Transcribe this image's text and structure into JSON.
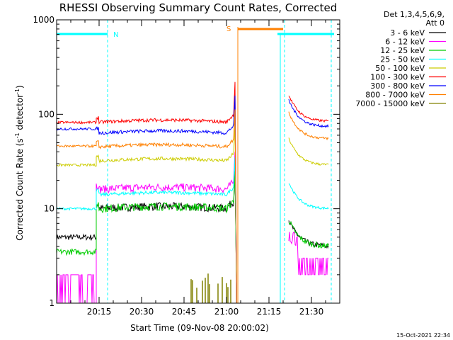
{
  "chart_data": {
    "type": "line",
    "title": "RHESSI Observing Summary Count Rates, Corrected",
    "xlabel": "Start Time (09-Nov-08 20:00:02)",
    "ylabel_parts": [
      "Corrected Count Rate (s",
      "-1",
      " detector",
      "-1",
      ")"
    ],
    "yscale": "log",
    "ylim": [
      1,
      1000
    ],
    "xlim_minutes": [
      0,
      100
    ],
    "y_ticks": [
      {
        "value": 1,
        "label": "1"
      },
      {
        "value": 10,
        "label": "10"
      },
      {
        "value": 100,
        "label": "100"
      },
      {
        "value": 1000,
        "label": "1000"
      }
    ],
    "x_ticks": [
      {
        "value": 15,
        "label": "20:15"
      },
      {
        "value": 30,
        "label": "20:30"
      },
      {
        "value": 45,
        "label": "20:45"
      },
      {
        "value": 60,
        "label": "21:00"
      },
      {
        "value": 75,
        "label": "21:15"
      },
      {
        "value": 90,
        "label": "21:30"
      }
    ],
    "legend_header": [
      "Det 1,3,4,5,6,9,",
      "Att 0"
    ],
    "series": [
      {
        "name": "3 - 6 keV",
        "color": "#000000",
        "level": 10,
        "pre": 5,
        "post": 4
      },
      {
        "name": "6 - 12 keV",
        "color": "#ff00ff",
        "level": 16,
        "pre": 2,
        "post": 2
      },
      {
        "name": "12 - 25 keV",
        "color": "#00cc00",
        "level": 10,
        "pre": 3.5,
        "post": 4
      },
      {
        "name": "25 - 50 keV",
        "color": "#00ffff",
        "level": 14,
        "pre": 10,
        "post": 10
      },
      {
        "name": "50 - 100 keV",
        "color": "#cccc00",
        "level": 32,
        "pre": 29,
        "post": 29
      },
      {
        "name": "100 - 300 keV",
        "color": "#ff0000",
        "level": 82,
        "pre": 82,
        "post": 84
      },
      {
        "name": "300 - 800 keV",
        "color": "#0000ff",
        "level": 63,
        "pre": 70,
        "post": 74
      },
      {
        "name": "800 - 7000 keV",
        "color": "#ff8000",
        "level": 45,
        "pre": 46,
        "post": 55
      },
      {
        "name": "7000 - 15000 keV",
        "color": "#808000",
        "level": 1,
        "pre": 1,
        "post": 1
      }
    ],
    "flags": [
      {
        "label": "N",
        "color": "#00ffff"
      },
      {
        "label": "S",
        "color": "#ff8000"
      }
    ],
    "timestamp": "15-Oct-2021 22:34"
  }
}
